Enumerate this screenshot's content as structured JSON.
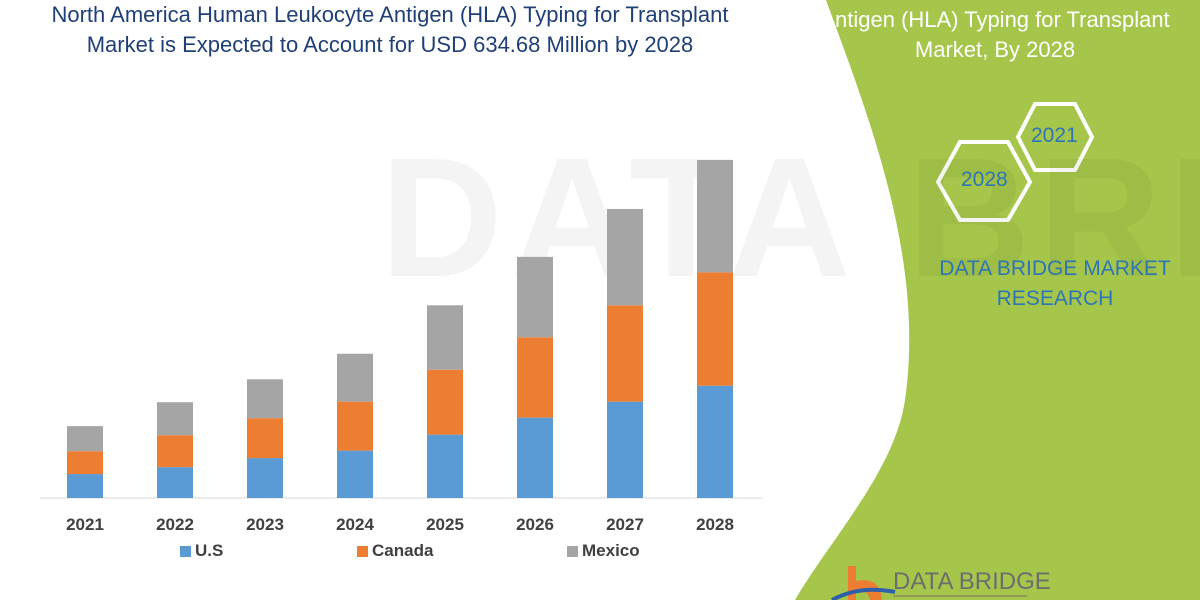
{
  "title": {
    "line1": "North America Human Leukocyte Antigen (HLA) Typing for Transplant",
    "line2": "Market is Expected to Account for USD 634.68 Million by 2028"
  },
  "side_panel": {
    "title_line1": "Antigen (HLA) Typing for Transplant",
    "title_line2": "Market, By 2028",
    "hex_years": [
      "2028",
      "2021"
    ],
    "brand_line1": "DATA BRIDGE MARKET",
    "brand_line2": "RESEARCH",
    "logo_text": "DATA BRIDGE",
    "watermark": "DATA BRIDGE",
    "panel_color": "#a5c64b",
    "text_color": "#2e75b6"
  },
  "chart_data": {
    "type": "bar",
    "stacked": true,
    "categories": [
      "2021",
      "2022",
      "2023",
      "2024",
      "2025",
      "2026",
      "2027",
      "2028"
    ],
    "series": [
      {
        "name": "U.S",
        "color": "#5b9bd5",
        "values": [
          45,
          58,
          75,
          89,
          119,
          151,
          181,
          211
        ]
      },
      {
        "name": "Canada",
        "color": "#ed7d31",
        "values": [
          43,
          60,
          75,
          92,
          122,
          151,
          181,
          213
        ]
      },
      {
        "name": "Mexico",
        "color": "#a5a5a5",
        "values": [
          47,
          62,
          73,
          90,
          121,
          151,
          181,
          211
        ]
      }
    ],
    "xlabel": "",
    "ylabel": "",
    "y_axis_shown": false,
    "grid": false,
    "legend_position": "bottom"
  }
}
